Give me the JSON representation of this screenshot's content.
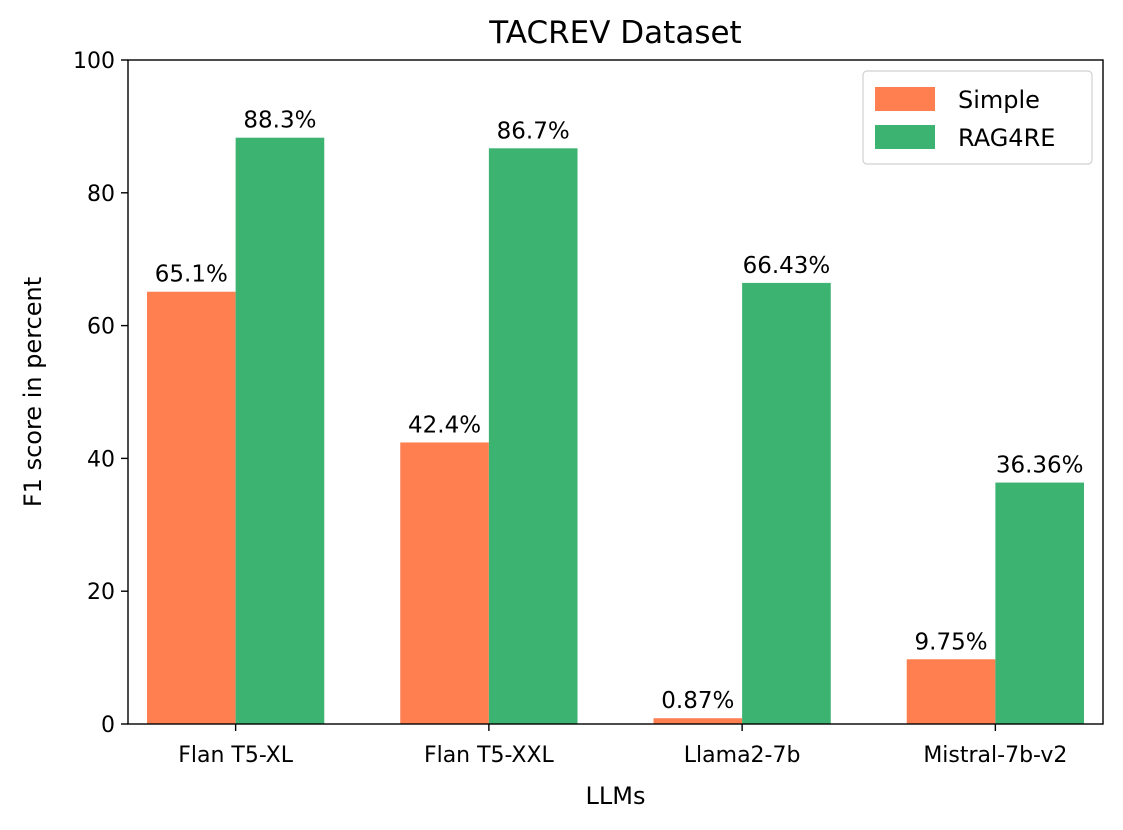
{
  "chart_data": {
    "type": "bar",
    "title": "TACREV Dataset",
    "xlabel": "LLMs",
    "ylabel": "F1 score in percent",
    "ylim": [
      0,
      100
    ],
    "yticks": [
      0,
      20,
      40,
      60,
      80,
      100
    ],
    "grid": false,
    "legend_position": "top-right",
    "categories": [
      "Flan T5-XL",
      "Flan T5-XXL",
      "Llama2-7b",
      "Mistral-7b-v2"
    ],
    "series": [
      {
        "name": "Simple",
        "color": "#ff7f50",
        "values": [
          65.1,
          42.4,
          0.87,
          9.75
        ],
        "labels": [
          "65.1%",
          "42.4%",
          "0.87%",
          "9.75%"
        ]
      },
      {
        "name": "RAG4RE",
        "color": "#3cb371",
        "values": [
          88.3,
          86.7,
          66.43,
          36.36
        ],
        "labels": [
          "88.3%",
          "86.7%",
          "66.43%",
          "36.36%"
        ]
      }
    ]
  }
}
